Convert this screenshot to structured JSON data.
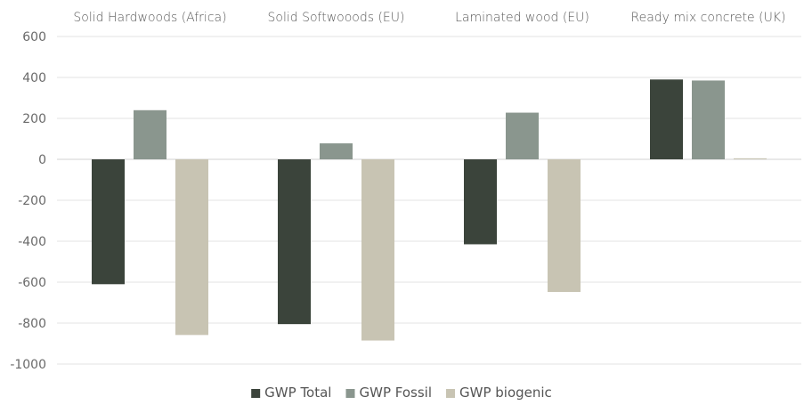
{
  "chart_data": {
    "type": "bar",
    "categories": [
      "Solid Hardwoods (Africa)",
      "Solid Softwooods (EU)",
      "Laminated wood (EU)",
      "Ready mix concrete (UK)"
    ],
    "series": [
      {
        "name": "GWP Total",
        "color": "#3b443b",
        "values": [
          -610,
          -805,
          -415,
          390
        ]
      },
      {
        "name": "GWP Fossil",
        "color": "#8a968e",
        "values": [
          240,
          78,
          228,
          385
        ]
      },
      {
        "name": "GWP biogenic",
        "color": "#c8c4b3",
        "values": [
          -858,
          -885,
          -648,
          5
        ]
      }
    ],
    "yticks": [
      "600",
      "400",
      "200",
      "0",
      "-200",
      "-400",
      "-600",
      "-800",
      "-1000"
    ],
    "ylim": [
      -1000,
      600
    ],
    "grid": true,
    "legend": "bottom",
    "category_labels_position": "top"
  }
}
